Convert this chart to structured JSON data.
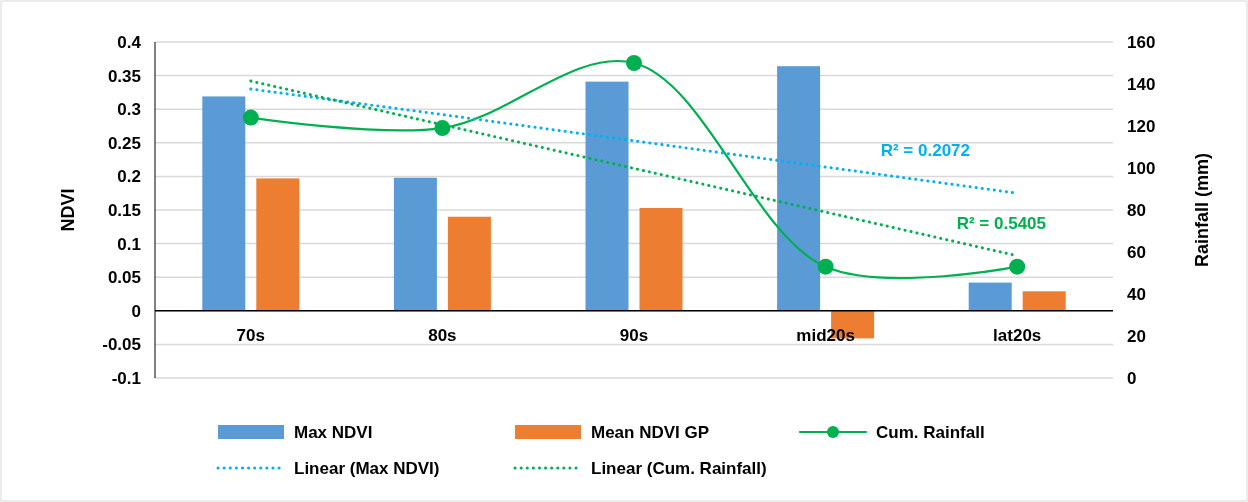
{
  "chart_data": {
    "type": "bar",
    "categories": [
      "70s",
      "80s",
      "90s",
      "mid20s",
      "lat20s"
    ],
    "ylabel": "NDVI",
    "y2label": "Rainfall (mm)",
    "ylim": [
      -0.1,
      0.4
    ],
    "yticks": [
      -0.1,
      -0.05,
      0,
      0.05,
      0.1,
      0.15,
      0.2,
      0.25,
      0.3,
      0.35,
      0.4
    ],
    "y2lim": [
      0,
      160
    ],
    "y2ticks": [
      0,
      20,
      40,
      60,
      80,
      100,
      120,
      140,
      160
    ],
    "grid": "y",
    "legend": "bottom",
    "series": [
      {
        "name": "Max NDVI",
        "color": "#5b9bd5",
        "values": [
          0.319,
          0.198,
          0.341,
          0.364,
          0.042
        ]
      },
      {
        "name": "Mean NDVI GP",
        "color": "#ed7d31",
        "values": [
          0.197,
          0.14,
          0.153,
          -0.041,
          0.029
        ]
      },
      {
        "name": "Cum. Rainfall",
        "type": "line",
        "axis": "y2",
        "color": "#00b050",
        "marker": "circle",
        "line_style": "solid",
        "values": [
          124,
          119,
          150,
          53,
          53
        ]
      },
      {
        "name": "Linear (Max NDVI)",
        "type": "line",
        "color": "#00b0f0",
        "marker": "none",
        "line_style": "dotted",
        "values": [
          0.33,
          0.292,
          0.253,
          0.214,
          0.175
        ]
      },
      {
        "name": "Linear (Cum. Rainfall)",
        "type": "line",
        "axis": "y2",
        "color": "#00b050",
        "marker": "none",
        "line_style": "dotted",
        "values": [
          141.4,
          120.6,
          99.8,
          79.0,
          58.2
        ]
      }
    ],
    "annotations": [
      "R² = 0.2072",
      "R² = 0.5405"
    ]
  }
}
